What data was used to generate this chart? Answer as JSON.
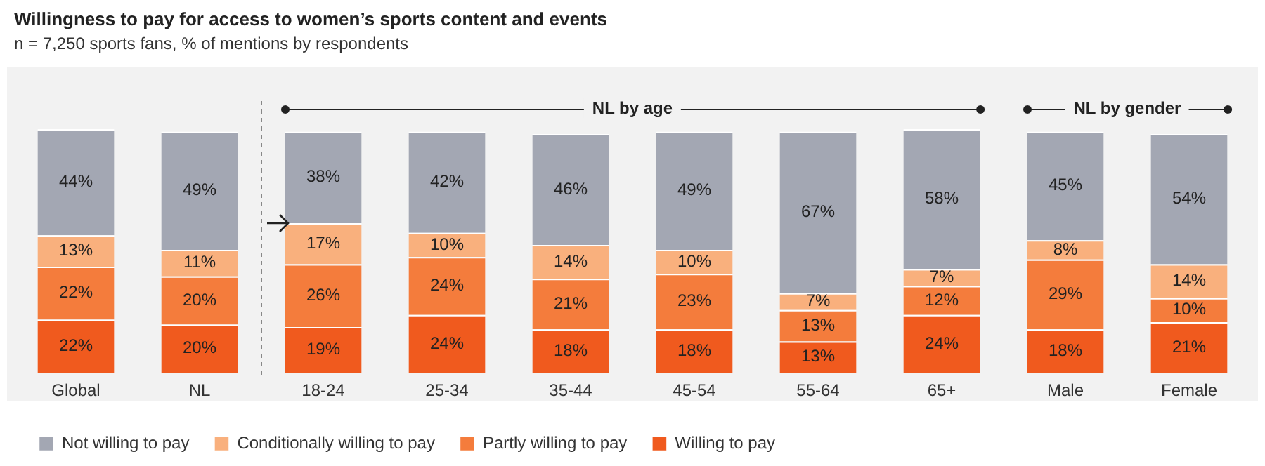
{
  "chart_data": {
    "type": "bar",
    "title": "Willingness to pay for access to women’s sports content and events",
    "subtitle": "n = 7,250 sports fans, % of mentions by respondents",
    "categories": [
      "Global",
      "NL",
      "18-24",
      "25-34",
      "35-44",
      "45-54",
      "55-64",
      "65+",
      "Male",
      "Female"
    ],
    "stacked": true,
    "grid": false,
    "legend": "bottom left",
    "tick_labels": "x",
    "annotations": [
      "NL by age",
      "NL by gender"
    ],
    "series": [
      {
        "name": "Willing to pay",
        "color": "#f05a1e",
        "values": [
          22,
          20,
          19,
          24,
          18,
          18,
          13,
          24,
          18,
          21
        ],
        "value_labels": [
          "22%",
          "20%",
          "19%",
          "24%",
          "18%",
          "18%",
          "13%",
          "24%",
          "18%",
          "21%"
        ]
      },
      {
        "name": "Partly willing to pay",
        "color": "#f47c3c",
        "values": [
          22,
          20,
          26,
          24,
          21,
          23,
          13,
          12,
          29,
          10
        ],
        "value_labels": [
          "22%",
          "20%",
          "26%",
          "24%",
          "21%",
          "23%",
          "13%",
          "12%",
          "29%",
          "10%"
        ]
      },
      {
        "name": "Conditionally willing to pay",
        "color": "#f9b07d",
        "values": [
          13,
          11,
          17,
          10,
          14,
          10,
          7,
          7,
          8,
          14
        ],
        "value_labels": [
          "13%",
          "11%",
          "17%",
          "10%",
          "14%",
          "10%",
          "7%",
          "7%",
          "8%",
          "14%"
        ]
      },
      {
        "name": "Not willing to pay",
        "color": "#a3a7b3",
        "values": [
          44,
          49,
          38,
          42,
          46,
          49,
          67,
          58,
          45,
          54
        ],
        "value_labels": [
          "44%",
          "49%",
          "38%",
          "42%",
          "46%",
          "49%",
          "67%",
          "58%",
          "45%",
          "54%"
        ]
      }
    ]
  }
}
